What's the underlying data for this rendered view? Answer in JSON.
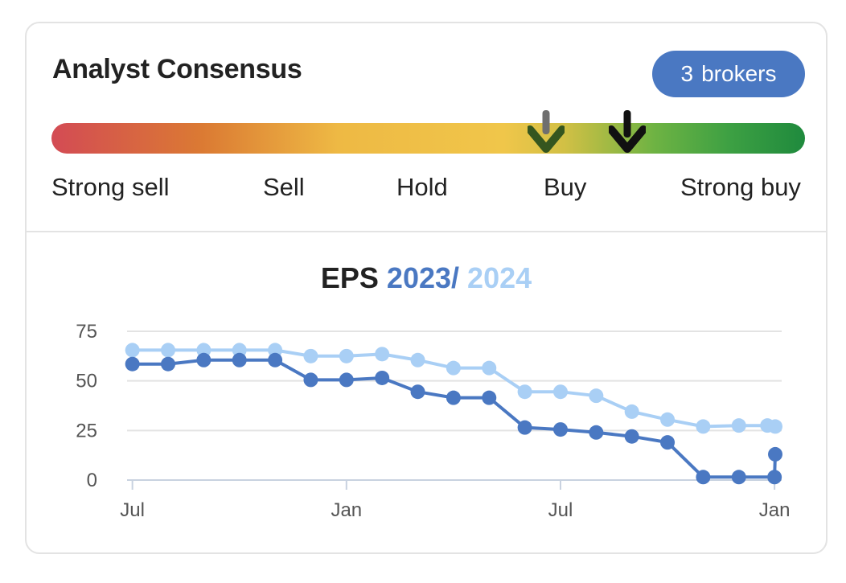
{
  "header": {
    "title": "Analyst Consensus",
    "brokers_count": "3",
    "brokers_label": "brokers"
  },
  "consensus_scale": {
    "labels": [
      "Strong sell",
      "Sell",
      "Hold",
      "Buy",
      "Strong buy"
    ],
    "previous_marker_value": 3.65,
    "current_marker_value": 4.1
  },
  "eps_title": {
    "prefix": "EPS",
    "year1": "2023",
    "separator": "/",
    "year2": "2024"
  },
  "colors": {
    "series_2023": "#4a78c2",
    "series_2024": "#a9cff5",
    "badge": "#4a78c2"
  },
  "chart_data": {
    "type": "line",
    "title": "EPS 2023 / 2024",
    "xlabel": "",
    "ylabel": "",
    "ylim": [
      0,
      75
    ],
    "yticks": [
      0,
      25,
      50,
      75
    ],
    "x_ticks": [
      {
        "label": "Jul",
        "pos": 0
      },
      {
        "label": "Jan",
        "pos": 6
      },
      {
        "label": "Jul",
        "pos": 12
      },
      {
        "label": "Jan",
        "pos": 18
      }
    ],
    "x_range": [
      -0.15,
      18.2
    ],
    "grid": true,
    "series": [
      {
        "name": "2023",
        "x": [
          0,
          1,
          2,
          3,
          4,
          5,
          6,
          7,
          8,
          9,
          10,
          11,
          12,
          13,
          14,
          15,
          16,
          17,
          18,
          18.02
        ],
        "values": [
          58.5,
          58.5,
          60.5,
          60.5,
          60.5,
          50.5,
          50.5,
          51.5,
          44.5,
          41.5,
          41.5,
          26.5,
          25.5,
          24,
          22,
          19,
          1.5,
          1.5,
          1.5,
          13
        ]
      },
      {
        "name": "2024",
        "x": [
          0,
          1,
          2,
          3,
          4,
          5,
          6,
          7,
          8,
          9,
          10,
          11,
          12,
          13,
          14,
          15,
          16,
          17,
          17.8,
          18.02
        ],
        "values": [
          65.5,
          65.5,
          65.5,
          65.5,
          65.5,
          62.5,
          62.5,
          63.5,
          60.5,
          56.5,
          56.5,
          44.5,
          44.5,
          42.5,
          34.5,
          30.5,
          27,
          27.5,
          27.5,
          27
        ]
      }
    ]
  }
}
